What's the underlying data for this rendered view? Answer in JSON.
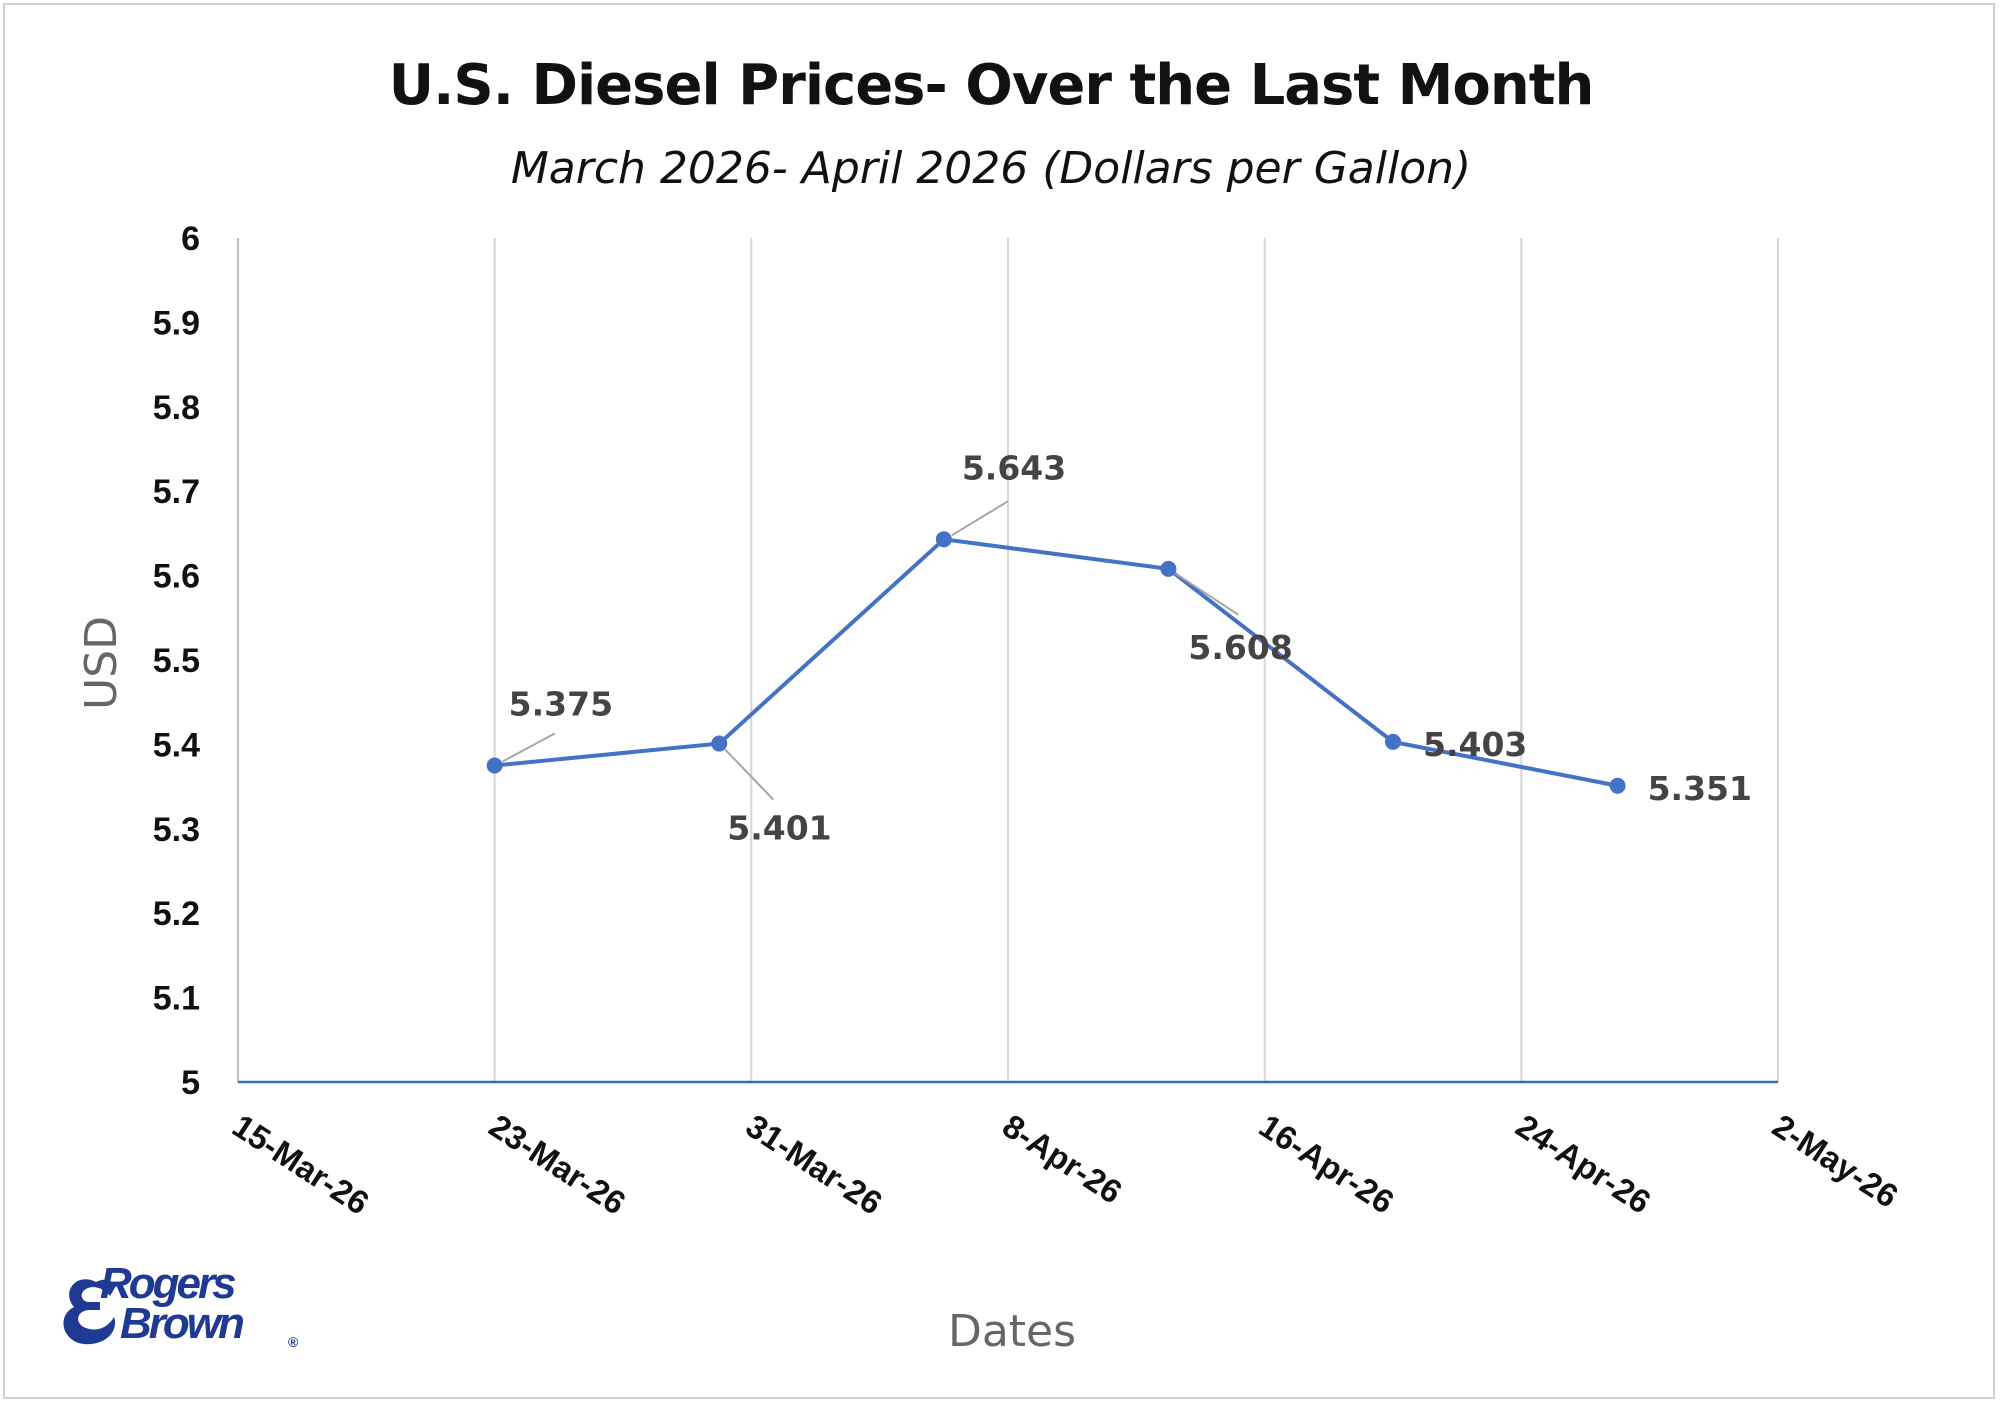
{
  "chart_data": {
    "type": "line",
    "title": "U.S. Diesel Prices- Over the Last Month",
    "subtitle": "March 2026- April 2026 (Dollars per Gallon)",
    "xlabel": "Dates",
    "ylabel": "USD",
    "x_ticks": [
      "15-Mar-26",
      "23-Mar-26",
      "31-Mar-26",
      "8-Apr-26",
      "16-Apr-26",
      "24-Apr-26",
      "2-May-26"
    ],
    "y_ticks": [
      "5",
      "5.1",
      "5.2",
      "5.3",
      "5.4",
      "5.5",
      "5.6",
      "5.7",
      "5.8",
      "5.9",
      "6"
    ],
    "xlim": [
      "2026-03-15",
      "2026-05-02"
    ],
    "ylim": [
      5,
      6
    ],
    "grid": "vertical",
    "series": [
      {
        "color": "#4472c4",
        "points": [
          {
            "x": "2026-03-23",
            "y": 5.375,
            "label": "5.375"
          },
          {
            "x": "2026-03-30",
            "y": 5.401,
            "label": "5.401"
          },
          {
            "x": "2026-04-06",
            "y": 5.643,
            "label": "5.643"
          },
          {
            "x": "2026-04-13",
            "y": 5.608,
            "label": "5.608"
          },
          {
            "x": "2026-04-20",
            "y": 5.403,
            "label": "5.403"
          },
          {
            "x": "2026-04-27",
            "y": 5.351,
            "label": "5.351"
          }
        ]
      }
    ]
  },
  "logo": {
    "line1": "Rogers",
    "line2": "Brown",
    "mark": "®"
  }
}
